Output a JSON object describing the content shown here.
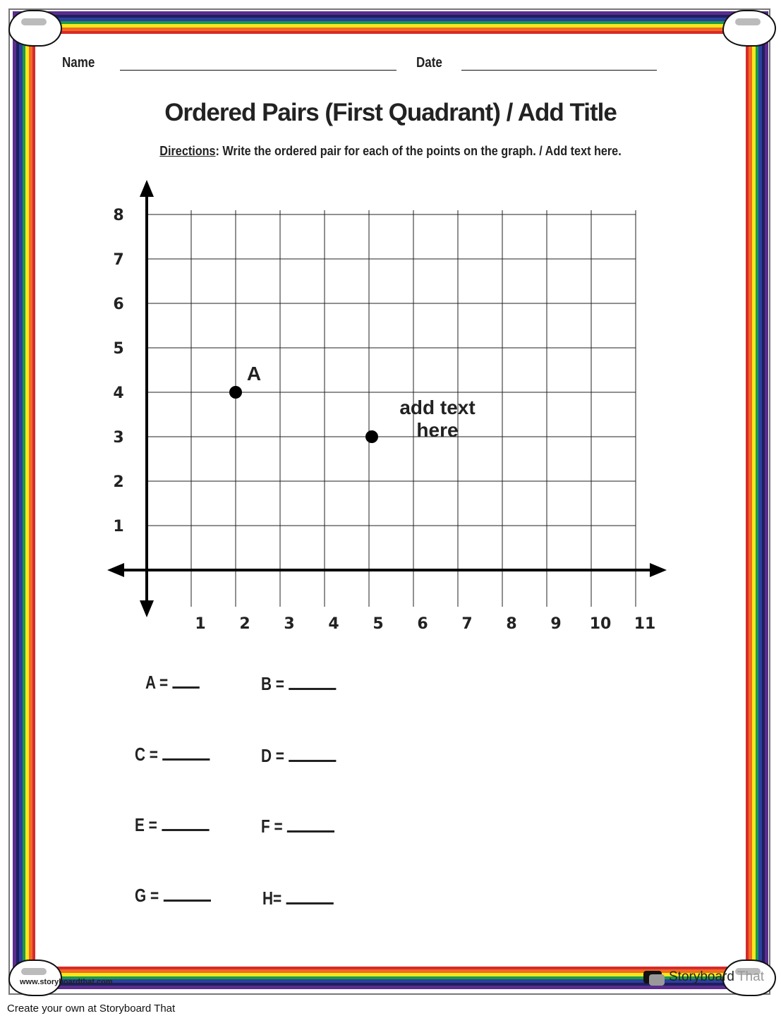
{
  "header": {
    "name_label": "Name",
    "date_label": "Date"
  },
  "title": "Ordered Pairs (First Quadrant) / Add Title",
  "directions": {
    "label": "Directions",
    "text": ": Write the ordered pair for each of the points on the graph. / Add text here."
  },
  "graph": {
    "x_ticks": [
      "1",
      "2",
      "3",
      "4",
      "5",
      "6",
      "7",
      "8",
      "9",
      "10",
      "11"
    ],
    "y_ticks": [
      "1",
      "2",
      "3",
      "4",
      "5",
      "6",
      "7",
      "8"
    ],
    "points": [
      {
        "label": "A",
        "x": 2,
        "y": 4
      },
      {
        "label": "add text here",
        "x": 5,
        "y": 3
      }
    ]
  },
  "answers": [
    {
      "label": "A ="
    },
    {
      "label": "B ="
    },
    {
      "label": "C ="
    },
    {
      "label": "D ="
    },
    {
      "label": "E ="
    },
    {
      "label": "F ="
    },
    {
      "label": "G ="
    },
    {
      "label": "H="
    }
  ],
  "border_colors": [
    "#5b2d8e",
    "#1f1f5e",
    "#2e3f9e",
    "#1a9a48",
    "#f7e81c",
    "#f26a22",
    "#d62b2b"
  ],
  "watermark": "www.storyboardthat.com",
  "logo": {
    "part1": "Storyboard",
    "part2": "That"
  },
  "footer": "Create your own at Storyboard That"
}
